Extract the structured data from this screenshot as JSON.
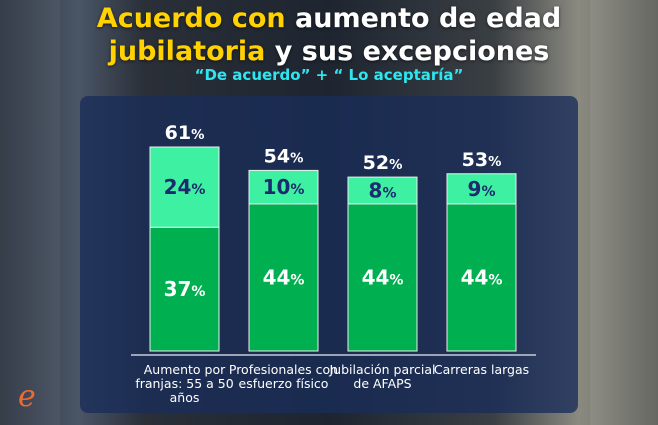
{
  "title": {
    "part1_highlight": "Acuerdo con",
    "part1_rest": " aumento de edad",
    "part2_highlight": "jubilatoria",
    "part2_rest": " y sus excepciones"
  },
  "subtitle": "“De acuerdo” + “ Lo aceptaría”",
  "logo_text": "e",
  "chart_data": {
    "type": "bar",
    "stacked": true,
    "categories": [
      "Aumento por franjas: 55 a 50 años",
      "Profesionales con esfuerzo físico",
      "Jubilación parcial de AFAPS",
      "Carreras largas"
    ],
    "series": [
      {
        "values": [
          37,
          44,
          44,
          44
        ],
        "color": "#00b050",
        "labels": [
          "37%",
          "44%",
          "44%",
          "44%"
        ]
      },
      {
        "values": [
          24,
          10,
          8,
          9
        ],
        "color": "#3ef0a2",
        "labels": [
          "24%",
          "10%",
          "8%",
          "9%"
        ]
      }
    ],
    "totals": [
      "61%",
      "54%",
      "52%",
      "53%"
    ],
    "ylim": [
      0,
      61
    ],
    "grid": false
  },
  "colors": {
    "highlight": "#ffd200",
    "subtitle": "#2ee6f0",
    "inner_top_label": "#1c2a6e"
  }
}
